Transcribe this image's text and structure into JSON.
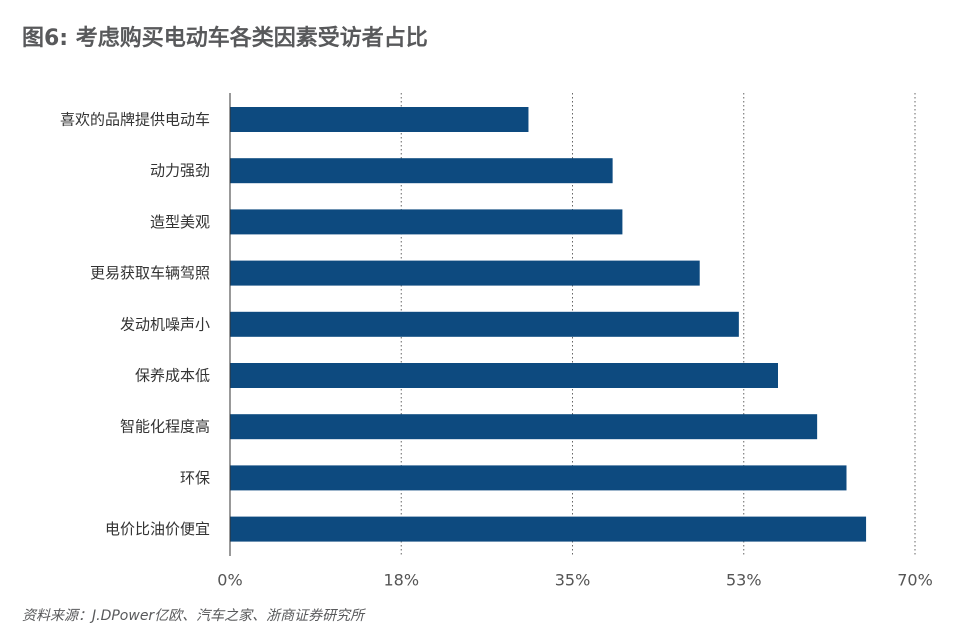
{
  "title": "图6: 考虑购买电动车各类因素受访者占比",
  "source": "资料来源：J.DPower亿欧、汽车之家、浙商证券研究所",
  "colors": {
    "bar": "#0d4a7f",
    "grid": "#666666",
    "axis": "#333333",
    "text": "#58595b"
  },
  "chart_data": {
    "type": "bar",
    "orientation": "horizontal",
    "title": "图6: 考虑购买电动车各类因素受访者占比",
    "categories": [
      "喜欢的品牌提供电动车",
      "动力强劲",
      "造型美观",
      "更易获取车辆驾照",
      "发动机噪声小",
      "保养成本低",
      "智能化程度高",
      "环保",
      "电价比油价便宜"
    ],
    "values": [
      30.5,
      39.1,
      40.1,
      48.0,
      52.0,
      56.0,
      60.0,
      63.0,
      65.0
    ],
    "xlim": [
      0,
      70
    ],
    "xticks": [
      0,
      17.5,
      35,
      52.5,
      70
    ],
    "xtick_labels": [
      "0%",
      "18%",
      "35%",
      "53%",
      "70%"
    ],
    "grid": "vertical dotted",
    "legend": "none"
  }
}
